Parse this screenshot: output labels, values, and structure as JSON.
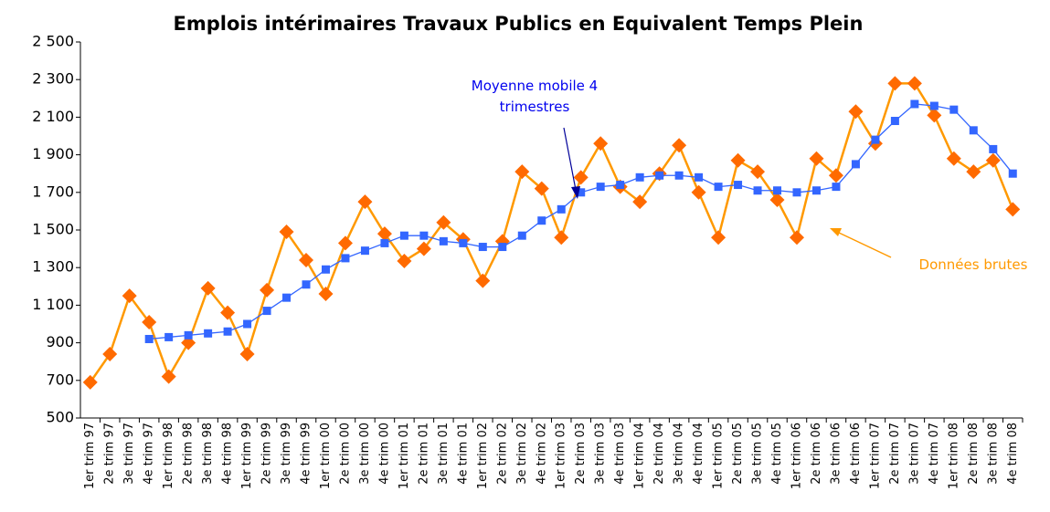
{
  "chart_data": {
    "type": "line",
    "title": "Emplois intérimaires Travaux Publics en Equivalent Temps Plein",
    "categories": [
      "1er trim 97",
      "2e trim 97",
      "3e trim 97",
      "4e trim 97",
      "1er trim 98",
      "2e trim 98",
      "3e trim 98",
      "4e trim 98",
      "1er trim 99",
      "2e trim 99",
      "3e trim 99",
      "4e trim 99",
      "1er trim 00",
      "2e trim 00",
      "3e trim 00",
      "4e trim 00",
      "1er trim 01",
      "2e trim 01",
      "3e trim 01",
      "4e trim 01",
      "1er trim 02",
      "2e trim 02",
      "3e trim 02",
      "4e trim 02",
      "1er trim 03",
      "2e trim 03",
      "3e trim 03",
      "4e trim 03",
      "1er trim 04",
      "2e trim 04",
      "3e trim 04",
      "4e trim 04",
      "1er trim 05",
      "2e trim 05",
      "3e trim 05",
      "4e trim 05",
      "1er trim 06",
      "2e trim 06",
      "3e trim 06",
      "4e trim 06",
      "1er trim 07",
      "2e trim 07",
      "3e trim 07",
      "4e trim 07",
      "1er trim 08",
      "2e trim 08",
      "3e trim 08",
      "4e trim 08"
    ],
    "series": [
      {
        "name": "Données brutes",
        "color": "#ff9900",
        "marker_color": "#ff6a00",
        "marker": "diamond",
        "values": [
          690,
          840,
          1150,
          1010,
          720,
          900,
          1190,
          1060,
          840,
          1180,
          1490,
          1340,
          1160,
          1430,
          1650,
          1480,
          1335,
          1400,
          1540,
          1450,
          1230,
          1440,
          1810,
          1720,
          1460,
          1780,
          1960,
          1730,
          1650,
          1800,
          1950,
          1700,
          1460,
          1870,
          1810,
          1660,
          1460,
          1880,
          1790,
          2130,
          1960,
          2280,
          2280,
          2110,
          1880,
          1810,
          1870,
          1610
        ]
      },
      {
        "name": "Moyenne mobile 4 trimestres",
        "color": "#3366ff",
        "marker_color": "#3366ff",
        "marker": "square",
        "values": [
          null,
          null,
          null,
          920,
          930,
          940,
          950,
          960,
          1000,
          1070,
          1140,
          1210,
          1290,
          1350,
          1390,
          1430,
          1470,
          1470,
          1440,
          1430,
          1410,
          1410,
          1470,
          1550,
          1610,
          1700,
          1730,
          1740,
          1780,
          1790,
          1790,
          1780,
          1730,
          1740,
          1710,
          1710,
          1700,
          1710,
          1730,
          1850,
          1980,
          2080,
          2170,
          2160,
          2140,
          2030,
          1930,
          1800
        ]
      }
    ],
    "ylim": [
      500,
      2500
    ],
    "yticks": [
      500,
      700,
      900,
      {
        "value": 1100,
        "label": "1 100"
      },
      {
        "value": 1300,
        "label": "1 300"
      },
      {
        "value": 1500,
        "label": "1 500"
      },
      {
        "value": 1700,
        "label": "1 700"
      },
      {
        "value": 1900,
        "label": "1 900"
      },
      {
        "value": 2100,
        "label": "2 100"
      },
      {
        "value": 2300,
        "label": "2 300"
      },
      {
        "value": 2500,
        "label": "2 500"
      }
    ],
    "grid": false
  }
}
